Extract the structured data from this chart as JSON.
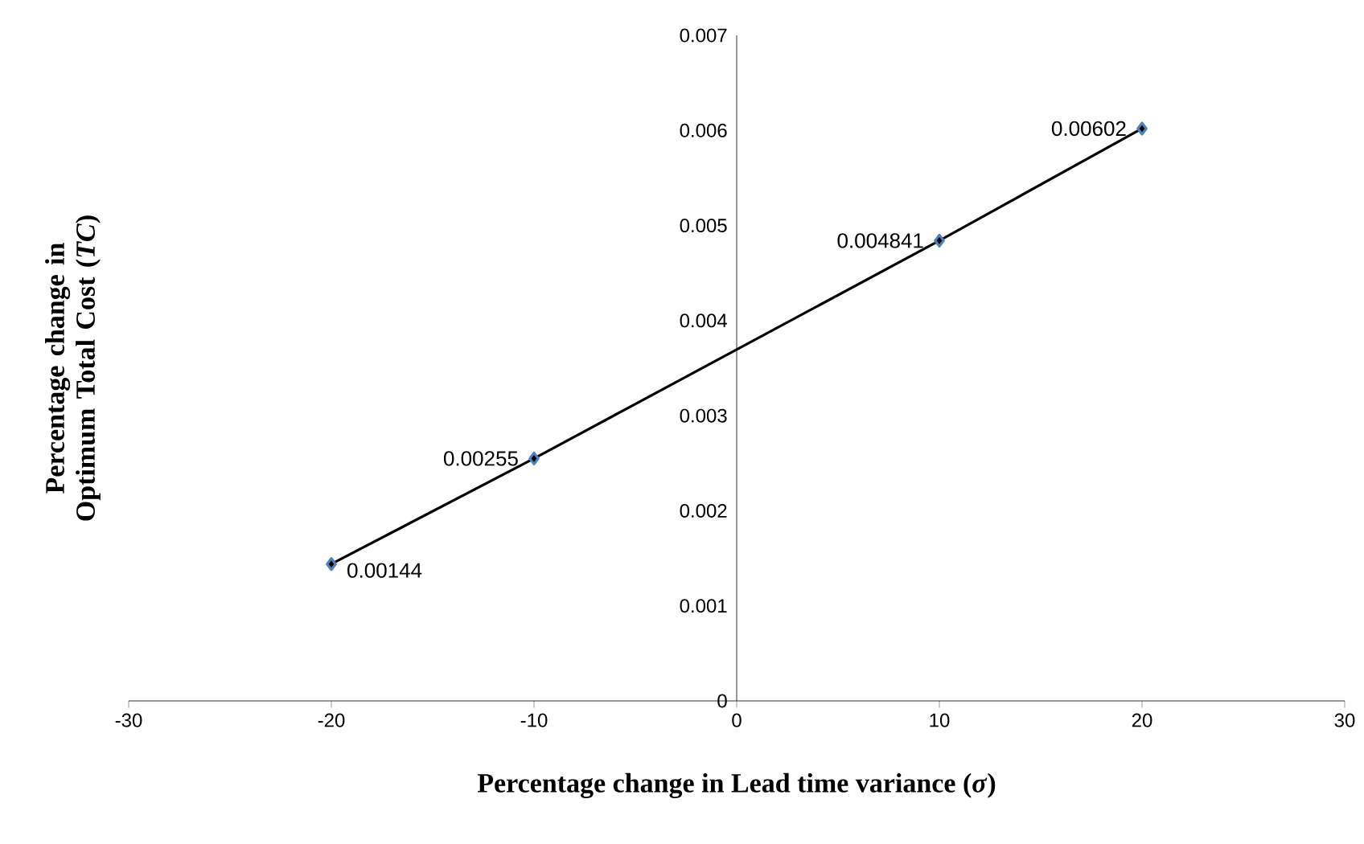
{
  "chart_data": {
    "type": "line",
    "xlabel": "Percentage change in Lead time variance (*σ*)",
    "ylabel": "Percentage change in Optimum Total Cost (*TC*)",
    "xlim": [
      -30,
      30
    ],
    "xticks": [
      -30,
      -20,
      -10,
      0,
      10,
      20,
      30
    ],
    "ylim": [
      0,
      0.007
    ],
    "yticks": [
      0,
      0.001,
      0.002,
      0.003,
      0.004,
      0.005,
      0.006,
      0.007
    ],
    "series": [
      {
        "color": "#000000",
        "x": [
          -20,
          -10,
          10,
          20
        ],
        "values": [
          0.00144,
          0.00255,
          0.004841,
          0.00602
        ],
        "value_labels": [
          "0.00144",
          "0.00255",
          "0.004841",
          "0.00602"
        ]
      }
    ],
    "marker": "diamond",
    "line_style": "solid",
    "grid": false
  }
}
